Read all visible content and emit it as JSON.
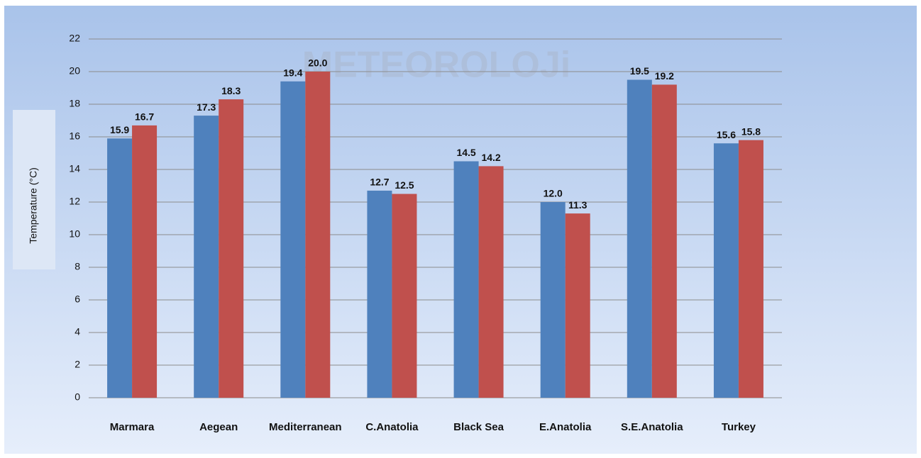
{
  "chart_data": {
    "type": "bar",
    "watermark": "METEOROLOJi",
    "y_label": "Temperature (°C)",
    "categories": [
      "Marmara",
      "Aegean",
      "Mediterranean",
      "C.Anatolia",
      "Black Sea",
      "E.Anatolia",
      "S.E.Anatolia",
      "Turkey"
    ],
    "series": [
      {
        "color": "#4f81bd",
        "values": [
          15.9,
          17.3,
          19.4,
          12.7,
          14.5,
          12,
          19.5,
          15.6
        ],
        "value_labels": [
          "15.9",
          "17.3",
          "19.4",
          "12.7",
          "14.5",
          "12.0",
          "19.5",
          "15.6"
        ]
      },
      {
        "color": "#c0504d",
        "values": [
          16.7,
          18.3,
          20,
          12.5,
          14.2,
          11.3,
          19.2,
          15.8
        ],
        "value_labels": [
          "16.7",
          "18.3",
          "20.0",
          "12.5",
          "14.2",
          "11.3",
          "19.2",
          "15.8"
        ]
      }
    ],
    "ylim": [
      0,
      22
    ],
    "yticks": [
      0,
      2,
      4,
      6,
      8,
      10,
      12,
      14,
      16,
      18,
      20,
      22
    ],
    "grid": true
  }
}
